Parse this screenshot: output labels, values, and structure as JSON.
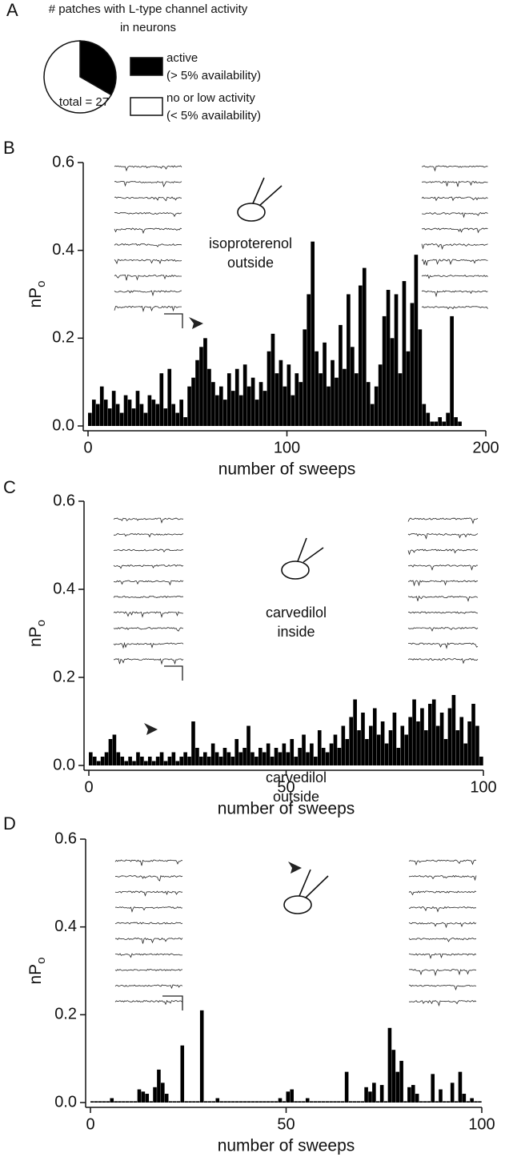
{
  "chart_data": [
    {
      "type": "pie",
      "panel": "A",
      "title": [
        "# patches with L-type channel activity",
        "in neurons"
      ],
      "values": [
        9,
        18
      ],
      "colors": [
        "#000000",
        "#ffffff"
      ],
      "labels": [
        [
          "active",
          "(> 5% availability)"
        ],
        [
          "no or low activity",
          "(< 5% availability)"
        ]
      ],
      "annotation": "total = 27"
    },
    {
      "type": "bar",
      "panel": "B",
      "color": "#000000",
      "xlabel": "number of sweeps",
      "ylabel": "nP",
      "ylabel_sub": "o",
      "annotation": [
        "isoproterenol",
        "outside"
      ],
      "xlim": [
        0,
        200
      ],
      "xticks": [
        0,
        100,
        200
      ],
      "ylim": [
        0,
        0.6
      ],
      "yticks": [
        {
          "value": 0,
          "label": "0.0"
        },
        0.2,
        0.4,
        0.6
      ],
      "x": [
        0,
        2,
        4,
        6,
        8,
        10,
        12,
        14,
        16,
        18,
        20,
        22,
        24,
        26,
        28,
        30,
        32,
        34,
        36,
        38,
        40,
        42,
        44,
        46,
        48,
        50,
        52,
        54,
        56,
        58,
        60,
        62,
        64,
        66,
        68,
        70,
        72,
        74,
        76,
        78,
        80,
        82,
        84,
        86,
        88,
        90,
        92,
        94,
        96,
        98,
        100,
        102,
        104,
        106,
        108,
        110,
        112,
        114,
        116,
        118,
        120,
        122,
        124,
        126,
        128,
        130,
        132,
        134,
        136,
        138,
        140,
        142,
        144,
        146,
        148,
        150,
        152,
        154,
        156,
        158,
        160,
        162,
        164,
        166,
        168,
        170,
        172,
        174,
        176,
        178,
        180,
        182,
        184,
        186,
        188,
        190
      ],
      "values": [
        0.03,
        0.06,
        0.05,
        0.09,
        0.06,
        0.04,
        0.08,
        0.05,
        0.03,
        0.07,
        0.06,
        0.04,
        0.08,
        0.05,
        0.03,
        0.07,
        0.06,
        0.05,
        0.12,
        0.04,
        0.13,
        0.05,
        0.03,
        0.06,
        0.02,
        0.09,
        0.11,
        0.15,
        0.18,
        0.2,
        0.13,
        0.1,
        0.07,
        0.09,
        0.06,
        0.12,
        0.08,
        0.13,
        0.07,
        0.14,
        0.09,
        0.11,
        0.06,
        0.1,
        0.08,
        0.17,
        0.21,
        0.12,
        0.15,
        0.09,
        0.14,
        0.07,
        0.12,
        0.1,
        0.22,
        0.3,
        0.42,
        0.17,
        0.12,
        0.19,
        0.09,
        0.15,
        0.11,
        0.23,
        0.13,
        0.3,
        0.18,
        0.12,
        0.32,
        0.36,
        0.1,
        0.05,
        0.09,
        0.14,
        0.25,
        0.31,
        0.2,
        0.3,
        0.12,
        0.33,
        0.17,
        0.28,
        0.39,
        0.22,
        0.05,
        0.03,
        0.01,
        0.01,
        0.02,
        0.01,
        0.03,
        0.25,
        0.02,
        0.01,
        0,
        0
      ]
    },
    {
      "type": "bar",
      "panel": "C",
      "color": "#000000",
      "xlabel": "number of sweeps",
      "ylabel": "nP",
      "ylabel_sub": "o",
      "annotation": [
        "carvedilol",
        "inside"
      ],
      "xlim": [
        0,
        100
      ],
      "xticks": [
        0,
        50,
        100
      ],
      "ylim": [
        0,
        0.6
      ],
      "yticks": [
        {
          "value": 0,
          "label": "0.0"
        },
        0.2,
        0.4,
        0.6
      ],
      "x": [
        0,
        1,
        2,
        3,
        4,
        5,
        6,
        7,
        8,
        9,
        10,
        11,
        12,
        13,
        14,
        15,
        16,
        17,
        18,
        19,
        20,
        21,
        22,
        23,
        24,
        25,
        26,
        27,
        28,
        29,
        30,
        31,
        32,
        33,
        34,
        35,
        36,
        37,
        38,
        39,
        40,
        41,
        42,
        43,
        44,
        45,
        46,
        47,
        48,
        49,
        50,
        51,
        52,
        53,
        54,
        55,
        56,
        57,
        58,
        59,
        60,
        61,
        62,
        63,
        64,
        65,
        66,
        67,
        68,
        69,
        70,
        71,
        72,
        73,
        74,
        75,
        76,
        77,
        78,
        79,
        80,
        81,
        82,
        83,
        84,
        85,
        86,
        87,
        88,
        89,
        90,
        91,
        92,
        93,
        94,
        95,
        96,
        97,
        98,
        99
      ],
      "values": [
        0.03,
        0.02,
        0.01,
        0.02,
        0.03,
        0.06,
        0.07,
        0.03,
        0.02,
        0.01,
        0.02,
        0.01,
        0.03,
        0.02,
        0.01,
        0.02,
        0.01,
        0.02,
        0.03,
        0.01,
        0.02,
        0.03,
        0.01,
        0.02,
        0.03,
        0.02,
        0.1,
        0.04,
        0.02,
        0.03,
        0.02,
        0.05,
        0.03,
        0.02,
        0.04,
        0.03,
        0.02,
        0.06,
        0.03,
        0.04,
        0.09,
        0.03,
        0.02,
        0.04,
        0.03,
        0.05,
        0.02,
        0.04,
        0.03,
        0.05,
        0.03,
        0.06,
        0.02,
        0.04,
        0.07,
        0.03,
        0.05,
        0.02,
        0.08,
        0.04,
        0.03,
        0.05,
        0.07,
        0.04,
        0.09,
        0.06,
        0.11,
        0.15,
        0.08,
        0.12,
        0.06,
        0.09,
        0.13,
        0.07,
        0.1,
        0.05,
        0.08,
        0.12,
        0.04,
        0.09,
        0.07,
        0.11,
        0.15,
        0.1,
        0.13,
        0.08,
        0.14,
        0.15,
        0.09,
        0.12,
        0.06,
        0.13,
        0.16,
        0.08,
        0.11,
        0.05,
        0.1,
        0.14,
        0.09,
        0.02
      ]
    },
    {
      "type": "bar",
      "panel": "D",
      "color": "#000000",
      "xlabel": "number of sweeps",
      "ylabel": "nP",
      "ylabel_sub": "o",
      "annotation": [
        "carvedilol",
        "outside"
      ],
      "xlim": [
        0,
        100
      ],
      "xticks": [
        0,
        50,
        100
      ],
      "ylim": [
        0,
        0.6
      ],
      "yticks": [
        {
          "value": 0,
          "label": "0.0"
        },
        0.2,
        0.4,
        0.6
      ],
      "x": [
        0,
        1,
        2,
        3,
        4,
        5,
        6,
        7,
        8,
        9,
        10,
        11,
        12,
        13,
        14,
        15,
        16,
        17,
        18,
        19,
        20,
        21,
        22,
        23,
        24,
        25,
        26,
        27,
        28,
        29,
        30,
        31,
        32,
        33,
        34,
        35,
        36,
        37,
        38,
        39,
        40,
        41,
        42,
        43,
        44,
        45,
        46,
        47,
        48,
        49,
        50,
        51,
        52,
        53,
        54,
        55,
        56,
        57,
        58,
        59,
        60,
        61,
        62,
        63,
        64,
        65,
        66,
        67,
        68,
        69,
        70,
        71,
        72,
        73,
        74,
        75,
        76,
        77,
        78,
        79,
        80,
        81,
        82,
        83,
        84,
        85,
        86,
        87,
        88,
        89,
        90,
        91,
        92,
        93,
        94,
        95,
        96,
        97,
        98,
        99
      ],
      "values": [
        0.003,
        0.003,
        0.003,
        0.003,
        0.003,
        0.01,
        0.003,
        0.003,
        0.003,
        0.003,
        0.003,
        0.003,
        0.03,
        0.025,
        0.02,
        0.003,
        0.035,
        0.075,
        0.045,
        0.02,
        0.003,
        0.003,
        0.003,
        0.13,
        0.003,
        0.003,
        0.003,
        0.003,
        0.21,
        0.003,
        0.003,
        0.003,
        0.01,
        0.003,
        0.003,
        0.003,
        0.003,
        0.003,
        0.003,
        0.003,
        0.003,
        0.003,
        0.003,
        0.003,
        0.003,
        0.003,
        0.003,
        0.003,
        0.01,
        0.003,
        0.025,
        0.03,
        0.003,
        0.003,
        0.003,
        0.01,
        0.003,
        0.003,
        0.003,
        0.003,
        0.003,
        0.003,
        0.003,
        0.003,
        0.003,
        0.07,
        0.003,
        0.003,
        0.003,
        0.003,
        0.035,
        0.025,
        0.045,
        0.003,
        0.04,
        0.003,
        0.17,
        0.12,
        0.07,
        0.095,
        0.003,
        0.035,
        0.04,
        0.02,
        0.003,
        0.003,
        0.003,
        0.065,
        0.003,
        0.03,
        0.003,
        0.003,
        0.045,
        0.003,
        0.07,
        0.02,
        0.003,
        0.01,
        0.003,
        0.003
      ]
    }
  ]
}
